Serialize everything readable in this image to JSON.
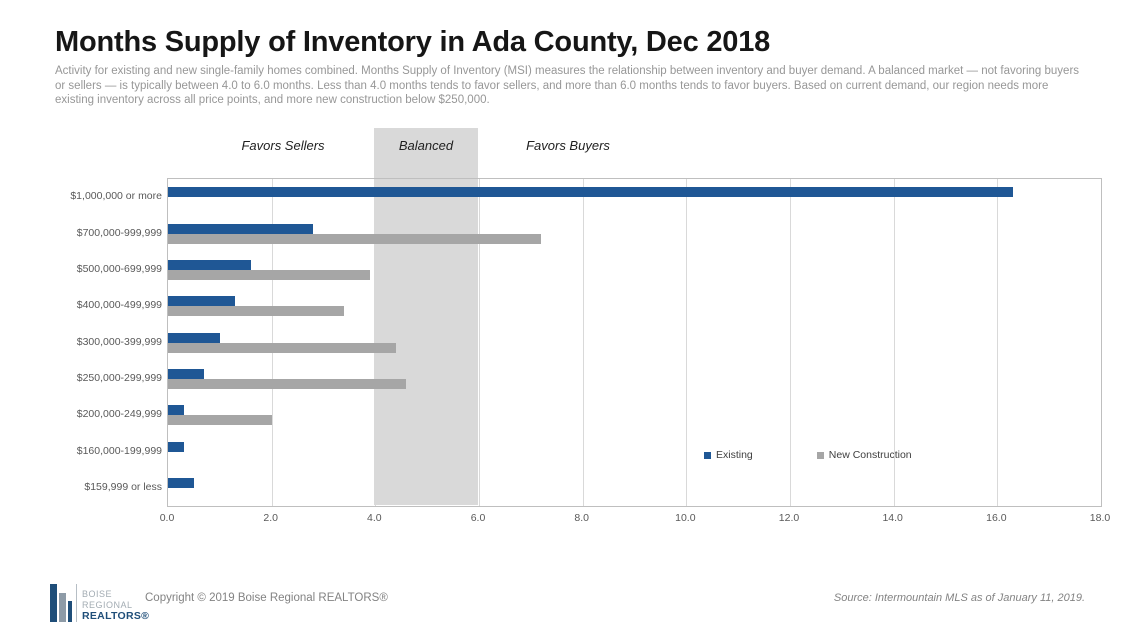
{
  "header": {
    "title": "Months Supply of Inventory in Ada County, Dec 2018",
    "subtitle": "Activity for existing and new single-family homes combined. Months Supply of Inventory (MSI) measures the relationship between inventory and buyer demand. A balanced market — not favoring buyers or sellers — is typically between 4.0 to 6.0 months. Less than 4.0 months tends to favor sellers, and more than 6.0 months tends to favor buyers. Based on current demand, our region needs more existing inventory across all price points, and more new construction below $250,000."
  },
  "chart_data": {
    "type": "bar",
    "orientation": "horizontal",
    "title": "Months Supply of Inventory in Ada County, Dec 2018",
    "categories": [
      "$1,000,000 or more",
      "$700,000-999,999",
      "$500,000-699,999",
      "$400,000-499,999",
      "$300,000-399,999",
      "$250,000-299,999",
      "$200,000-249,999",
      "$160,000-199,999",
      "$159,999 or less"
    ],
    "series": [
      {
        "name": "Existing",
        "color": "#1F5795",
        "values": [
          16.3,
          2.8,
          1.6,
          1.3,
          1.0,
          0.7,
          0.3,
          0.3,
          0.5
        ]
      },
      {
        "name": "New Construction",
        "color": "#A6A6A6",
        "values": [
          0,
          7.2,
          3.9,
          3.4,
          4.4,
          4.6,
          2.0,
          0,
          0
        ]
      }
    ],
    "xlim": [
      0,
      18
    ],
    "x_ticks": [
      "0.0",
      "2.0",
      "4.0",
      "6.0",
      "8.0",
      "10.0",
      "12.0",
      "14.0",
      "16.0",
      "18.0"
    ],
    "grid": "vertical",
    "legend_position": "inside-right",
    "zones": {
      "sellers_label": "Favors Sellers",
      "balanced_label": "Balanced",
      "buyers_label": "Favors Buyers",
      "balanced_range": [
        4.0,
        6.0
      ],
      "balanced_color": "#D9D9D9"
    }
  },
  "footer": {
    "logo": {
      "line1": "BOISE",
      "line2": "REGIONAL",
      "line3": "REALTORS®"
    },
    "copyright": "Copyright © 2019 Boise Regional REALTORS®",
    "source": "Source: Intermountain MLS as of January 11, 2019."
  }
}
